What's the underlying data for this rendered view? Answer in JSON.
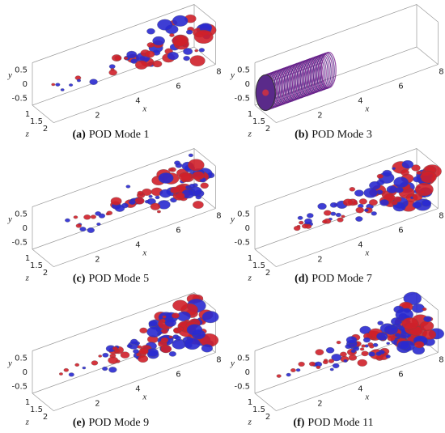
{
  "panels": [
    {
      "label": "(a)",
      "caption": "POD Mode 1",
      "y_label": "y",
      "z_label": "z",
      "x_label": "x",
      "yticks": [
        "0.5",
        "0",
        "-0.5"
      ],
      "zticks": [
        "1",
        "1.5",
        "2"
      ],
      "xticks": [
        "2",
        "4",
        "6",
        "8"
      ]
    },
    {
      "label": "(b)",
      "caption": "POD Mode 3",
      "y_label": "y",
      "z_label": "z",
      "x_label": "x",
      "yticks": [
        "0.5",
        "0",
        "-0.5"
      ],
      "zticks": [
        "1",
        "1.5",
        "2"
      ],
      "xticks": [
        "2",
        "4",
        "6",
        "8"
      ]
    },
    {
      "label": "(c)",
      "caption": "POD Mode 5",
      "y_label": "y",
      "z_label": "z",
      "x_label": "x",
      "yticks": [
        "0.5",
        "0",
        "-0.5"
      ],
      "zticks": [
        "1",
        "1.5",
        "2"
      ],
      "xticks": [
        "2",
        "4",
        "6",
        "8"
      ]
    },
    {
      "label": "(d)",
      "caption": "POD Mode 7",
      "y_label": "y",
      "z_label": "z",
      "x_label": "x",
      "yticks": [
        "0.5",
        "0",
        "-0.5"
      ],
      "zticks": [
        "1",
        "1.5",
        "2"
      ],
      "xticks": [
        "2",
        "4",
        "6",
        "8"
      ]
    },
    {
      "label": "(e)",
      "caption": "POD Mode 9",
      "y_label": "y",
      "z_label": "z",
      "x_label": "x",
      "yticks": [
        "0.5",
        "0",
        "-0.5"
      ],
      "zticks": [
        "1",
        "1.5",
        "2"
      ],
      "xticks": [
        "2",
        "4",
        "6",
        "8"
      ]
    },
    {
      "label": "(f)",
      "caption": "POD Mode 11",
      "y_label": "y",
      "z_label": "z",
      "x_label": "x",
      "yticks": [
        "0.5",
        "0",
        "-0.5"
      ],
      "zticks": [
        "1",
        "1.5",
        "2"
      ],
      "xticks": [
        "2",
        "4",
        "6",
        "8"
      ]
    }
  ]
}
